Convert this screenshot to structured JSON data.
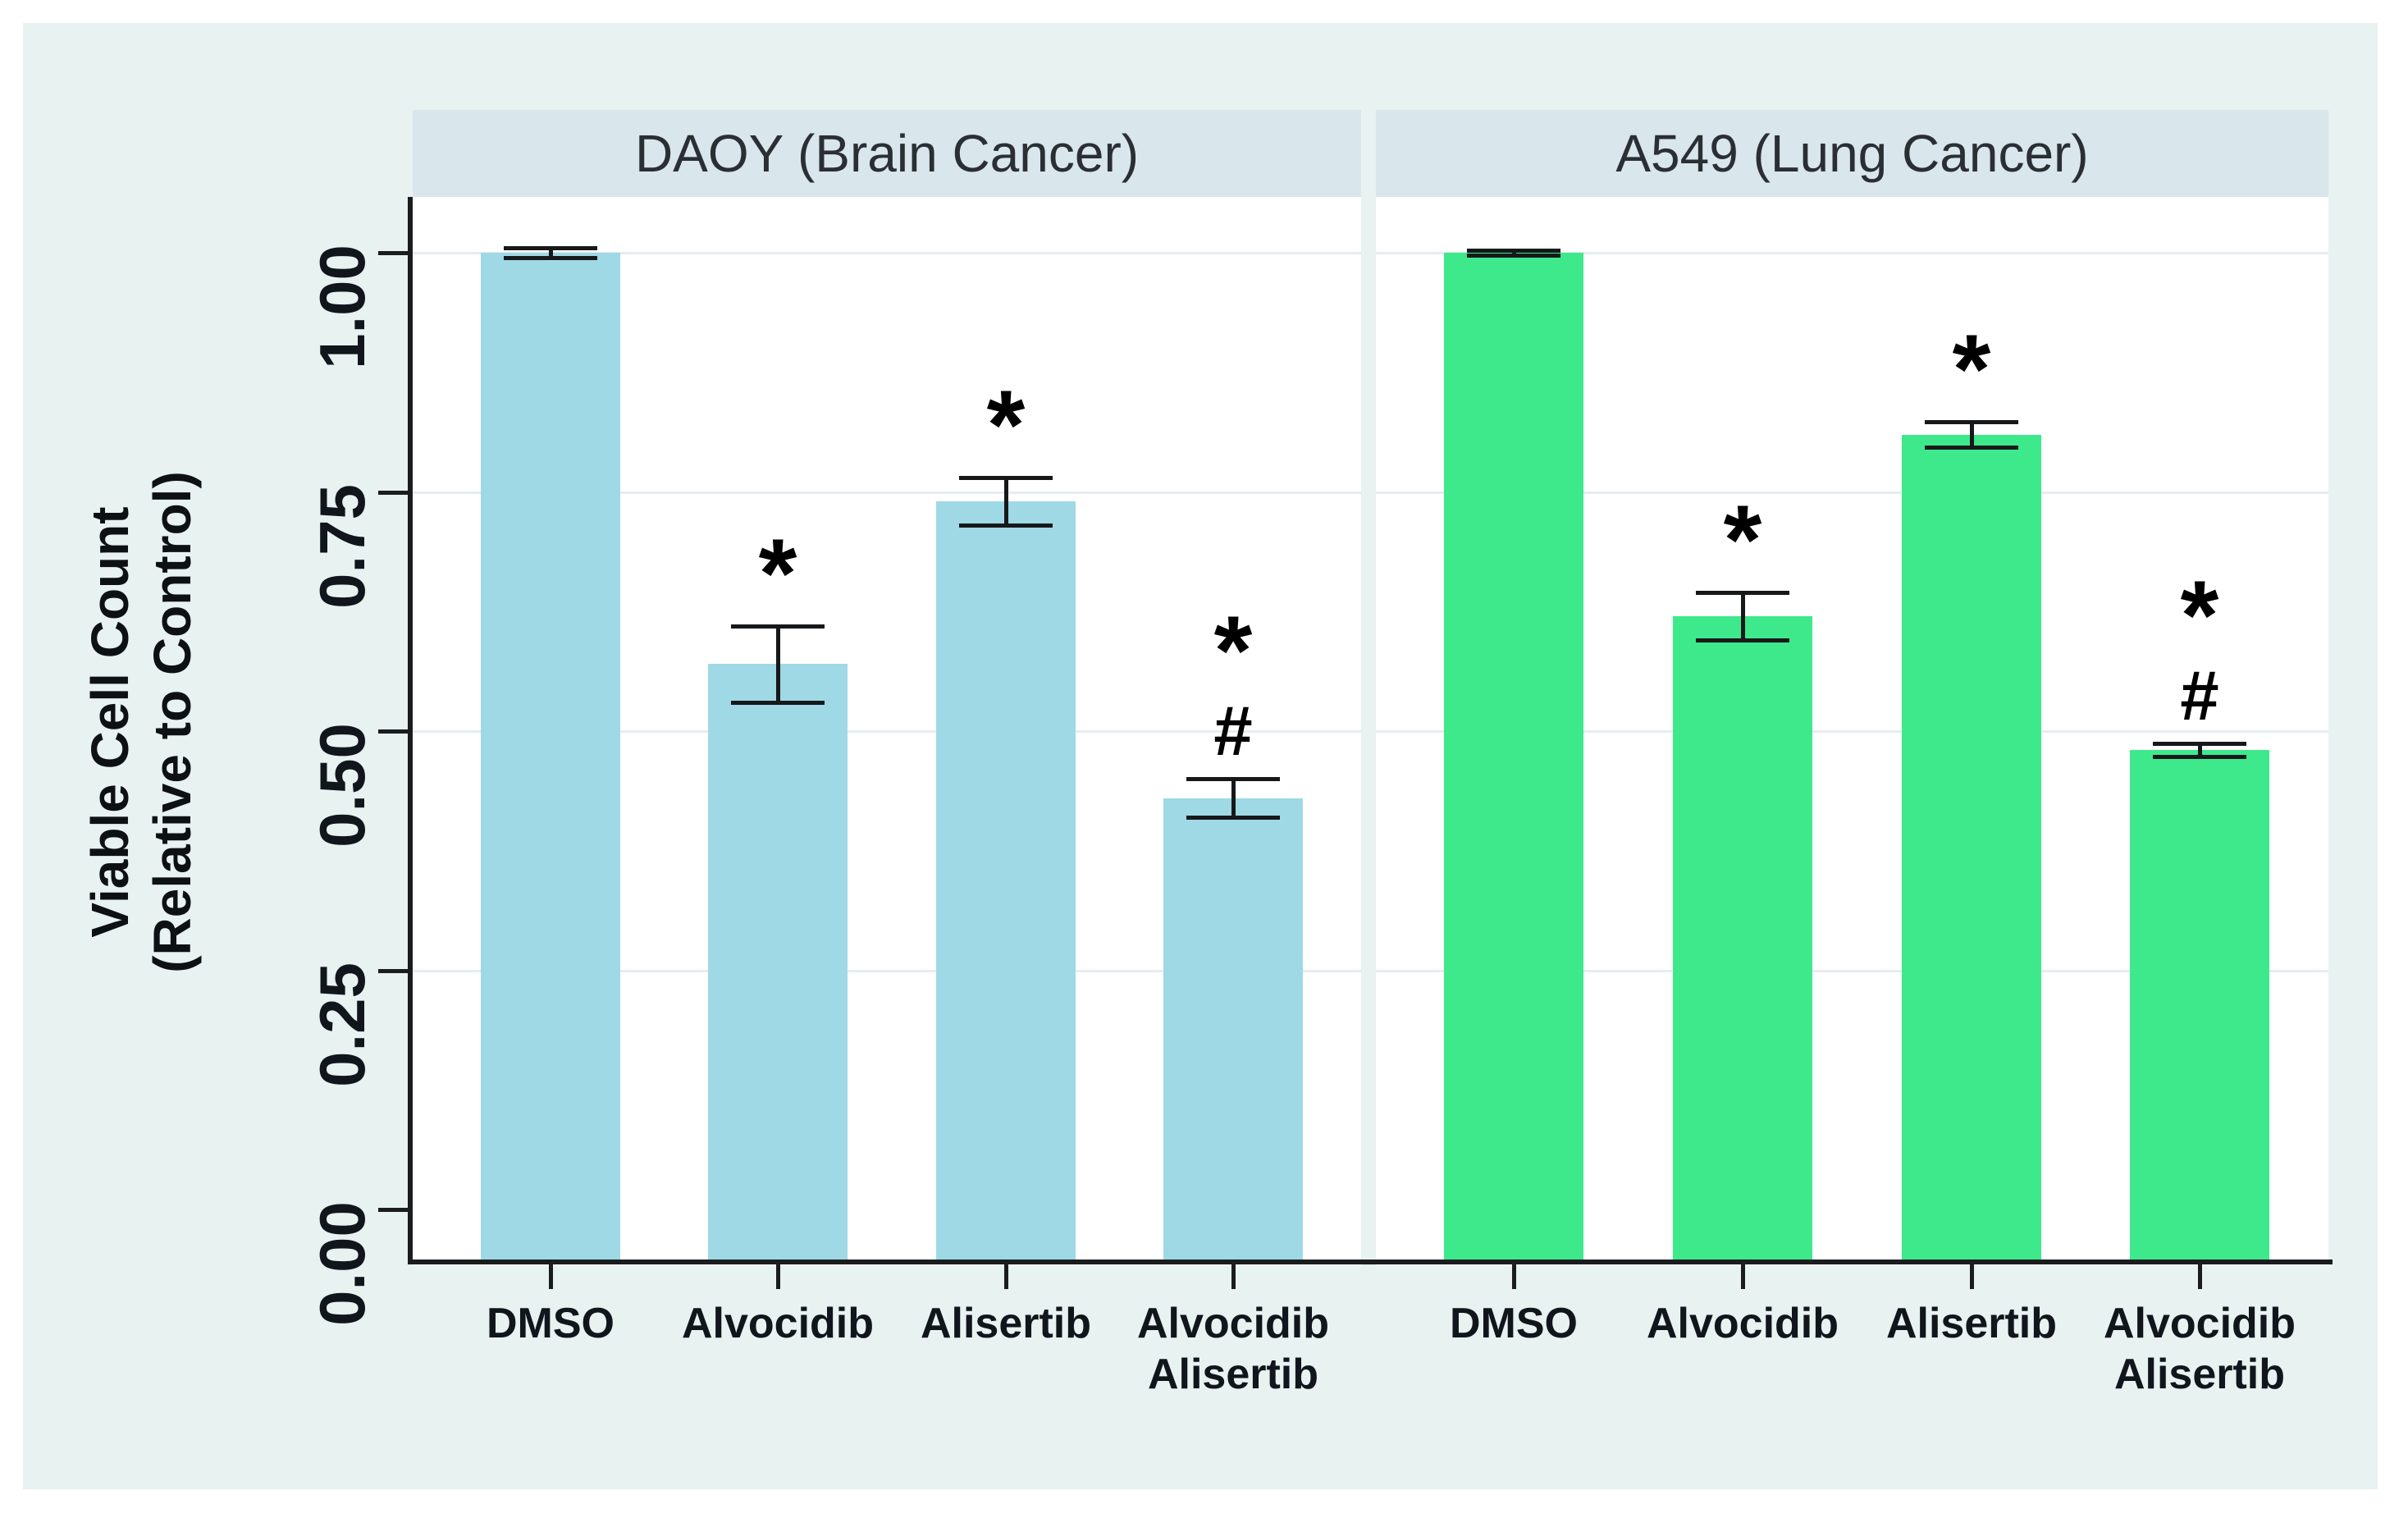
{
  "figure": {
    "background_color": "#e7f2f1",
    "header_color": "#d9e6ec",
    "plot_background": "#ffffff",
    "grid_color": "#e6edf0",
    "axis_color": "#1a1c1e",
    "ylabel_line1": "Viable Cell Count",
    "ylabel_line2": "(Relative to Control)"
  },
  "chart_data": {
    "type": "bar",
    "title": "",
    "ylabel": "Viable Cell Count (Relative to Control)",
    "ylim": [
      0,
      1.05
    ],
    "grid": true,
    "legend": "none",
    "yticks": [
      {
        "value": 0.0,
        "label": "0.00"
      },
      {
        "value": 0.25,
        "label": "0.25"
      },
      {
        "value": 0.5,
        "label": "0.50"
      },
      {
        "value": 0.75,
        "label": "0.75"
      },
      {
        "value": 1.0,
        "label": "1.00"
      }
    ],
    "categories": [
      {
        "label": "DMSO",
        "lines": [
          "DMSO"
        ]
      },
      {
        "label": "Alvocidib",
        "lines": [
          "Alvocidib"
        ]
      },
      {
        "label": "Alisertib",
        "lines": [
          "Alisertib"
        ]
      },
      {
        "label": "Alvocidib + Alisertib",
        "lines": [
          "Alvocidib",
          "Alisertib"
        ]
      }
    ],
    "panels": [
      {
        "title": "DAOY (Brain Cancer)",
        "bar_color": "#9fd9e5",
        "series": [
          {
            "category": "DMSO",
            "value": 1.0,
            "error": 0.005,
            "markers": []
          },
          {
            "category": "Alvocidib",
            "value": 0.57,
            "error": 0.04,
            "markers": [
              "*"
            ]
          },
          {
            "category": "Alisertib",
            "value": 0.74,
            "error": 0.025,
            "markers": [
              "*"
            ]
          },
          {
            "category": "Alvocidib + Alisertib",
            "value": 0.43,
            "error": 0.02,
            "markers": [
              "*",
              "#"
            ]
          }
        ]
      },
      {
        "title": "A549 (Lung Cancer)",
        "bar_color": "#3ee98c",
        "series": [
          {
            "category": "DMSO",
            "value": 1.0,
            "error": 0.003,
            "markers": []
          },
          {
            "category": "Alvocidib",
            "value": 0.62,
            "error": 0.025,
            "markers": [
              "*"
            ]
          },
          {
            "category": "Alisertib",
            "value": 0.81,
            "error": 0.013,
            "markers": [
              "*"
            ]
          },
          {
            "category": "Alvocidib + Alisertib",
            "value": 0.48,
            "error": 0.007,
            "markers": [
              "*",
              "#"
            ]
          }
        ]
      }
    ]
  }
}
